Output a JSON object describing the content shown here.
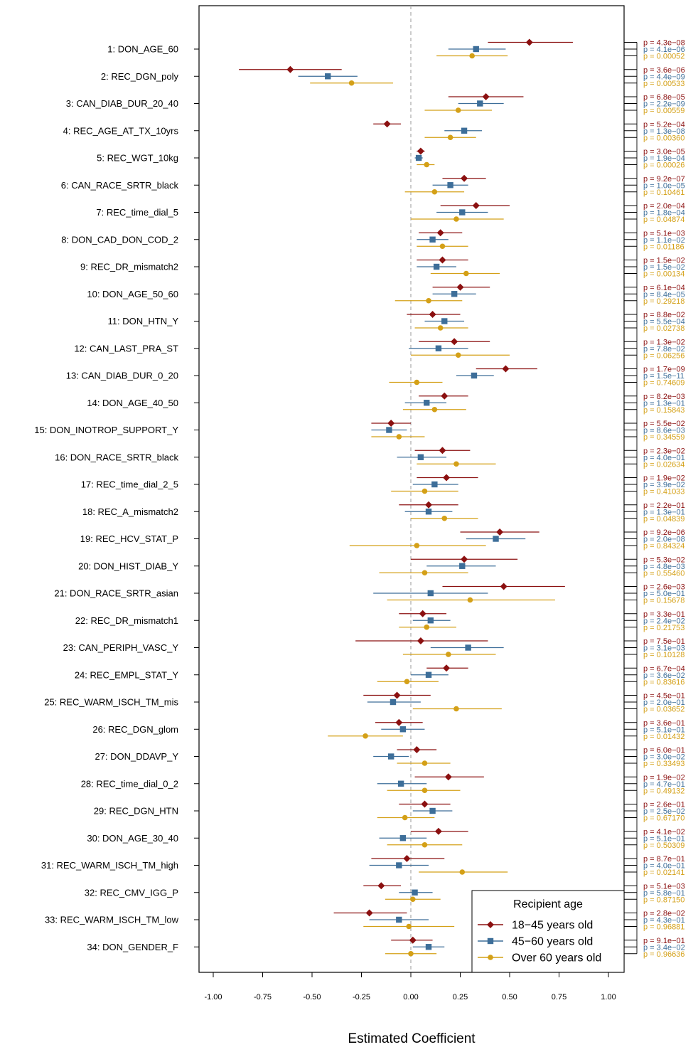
{
  "chart_data": {
    "type": "forest",
    "xlabel": "Estimated Coefficient",
    "xlim": [
      -1.0,
      1.0
    ],
    "xticks": [
      "-1.00",
      "-0.75",
      "-0.50",
      "-0.25",
      "0.00",
      "0.25",
      "0.50",
      "0.75",
      "1.00"
    ],
    "xtick_values": [
      -1.0,
      -0.75,
      -0.5,
      -0.25,
      0,
      0.25,
      0.5,
      0.75,
      1.0
    ],
    "reference_line": 0,
    "legend": {
      "title": "Recipient age",
      "placement": "bottom-right",
      "entries": [
        "18−45 years old",
        "45−60 years old",
        "Over 60 years old"
      ]
    },
    "series_styles": [
      {
        "color": "#8b1010",
        "marker": "diamond"
      },
      {
        "color": "#3d6e99",
        "marker": "square"
      },
      {
        "color": "#d4a017",
        "marker": "circle"
      }
    ],
    "categories": [
      "1:  DON_AGE_60",
      "2:  REC_DGN_poly",
      "3:  CAN_DIAB_DUR_20_40",
      "4:  REC_AGE_AT_TX_10yrs",
      "5:  REC_WGT_10kg",
      "6:  CAN_RACE_SRTR_black",
      "7:  REC_time_dial_5",
      "8:  DON_CAD_DON_COD_2",
      "9:  REC_DR_mismatch2",
      "10:  DON_AGE_50_60",
      "11:  DON_HTN_Y",
      "12:  CAN_LAST_PRA_ST",
      "13:  CAN_DIAB_DUR_0_20",
      "14:  DON_AGE_40_50",
      "15:  DON_INOTROP_SUPPORT_Y",
      "16:  DON_RACE_SRTR_black",
      "17:  REC_time_dial_2_5",
      "18:  REC_A_mismatch2",
      "19:  REC_HCV_STAT_P",
      "20:  DON_HIST_DIAB_Y",
      "21:  DON_RACE_SRTR_asian",
      "22:  REC_DR_mismatch1",
      "23:  CAN_PERIPH_VASC_Y",
      "24:  REC_EMPL_STAT_Y",
      "25:  REC_WARM_ISCH_TM_mis",
      "26:  REC_DGN_glom",
      "27:  DON_DDAVP_Y",
      "28:  REC_time_dial_0_2",
      "29:  REC_DGN_HTN",
      "30:  DON_AGE_30_40",
      "31:  REC_WARM_ISCH_TM_high",
      "32:  REC_CMV_IGG_P",
      "33:  REC_WARM_ISCH_TM_low",
      "34:  DON_GENDER_F"
    ],
    "series": [
      {
        "name": "18−45 years old",
        "estimates": [
          [
            0.6,
            0.39,
            0.82
          ],
          [
            -0.61,
            -0.87,
            -0.35
          ],
          [
            0.38,
            0.19,
            0.57
          ],
          [
            -0.12,
            -0.19,
            -0.05
          ],
          [
            0.05,
            0.03,
            0.07
          ],
          [
            0.27,
            0.16,
            0.38
          ],
          [
            0.33,
            0.15,
            0.5
          ],
          [
            0.15,
            0.04,
            0.26
          ],
          [
            0.16,
            0.03,
            0.29
          ],
          [
            0.25,
            0.11,
            0.4
          ],
          [
            0.11,
            -0.02,
            0.25
          ],
          [
            0.22,
            0.04,
            0.4
          ],
          [
            0.48,
            0.33,
            0.64
          ],
          [
            0.17,
            0.04,
            0.29
          ],
          [
            -0.1,
            -0.2,
            0.0
          ],
          [
            0.16,
            0.02,
            0.3
          ],
          [
            0.18,
            0.03,
            0.34
          ],
          [
            0.09,
            -0.06,
            0.24
          ],
          [
            0.45,
            0.25,
            0.65
          ],
          [
            0.27,
            0.0,
            0.54
          ],
          [
            0.47,
            0.16,
            0.78
          ],
          [
            0.06,
            -0.06,
            0.18
          ],
          [
            0.05,
            -0.28,
            0.39
          ],
          [
            0.18,
            0.08,
            0.29
          ],
          [
            -0.07,
            -0.24,
            0.1
          ],
          [
            -0.06,
            -0.18,
            0.06
          ],
          [
            0.03,
            -0.07,
            0.13
          ],
          [
            0.19,
            0.02,
            0.37
          ],
          [
            0.07,
            -0.06,
            0.2
          ],
          [
            0.14,
            0.0,
            0.29
          ],
          [
            -0.02,
            -0.2,
            0.17
          ],
          [
            -0.15,
            -0.24,
            -0.05
          ],
          [
            -0.21,
            -0.39,
            -0.02
          ],
          [
            0.01,
            -0.1,
            0.11
          ]
        ],
        "p_values": [
          "p = 4.3e−08",
          "p = 3.6e−06",
          "p = 6.8e−05",
          "p = 5.2e−04",
          "p = 3.0e−05",
          "p = 9.2e−07",
          "p = 2.0e−04",
          "p = 5.1e−03",
          "p = 1.5e−02",
          "p = 6.1e−04",
          "p = 8.8e−02",
          "p = 1.3e−02",
          "p = 1.7e−09",
          "p = 8.2e−03",
          "p = 5.5e−02",
          "p = 2.3e−02",
          "p = 1.9e−02",
          "p = 2.2e−01",
          "p = 9.2e−06",
          "p = 5.3e−02",
          "p = 2.6e−03",
          "p = 3.3e−01",
          "p = 7.5e−01",
          "p = 6.7e−04",
          "p = 4.5e−01",
          "p = 3.6e−01",
          "p = 6.0e−01",
          "p = 1.9e−02",
          "p = 2.6e−01",
          "p = 4.1e−02",
          "p = 8.7e−01",
          "p = 5.1e−03",
          "p = 2.8e−02",
          "p = 9.1e−01"
        ]
      },
      {
        "name": "45−60 years old",
        "estimates": [
          [
            0.33,
            0.19,
            0.48
          ],
          [
            -0.42,
            -0.57,
            -0.27
          ],
          [
            0.35,
            0.24,
            0.47
          ],
          [
            0.27,
            0.17,
            0.36
          ],
          [
            0.04,
            0.02,
            0.06
          ],
          [
            0.2,
            0.11,
            0.29
          ],
          [
            0.26,
            0.13,
            0.39
          ],
          [
            0.11,
            0.03,
            0.19
          ],
          [
            0.13,
            0.03,
            0.23
          ],
          [
            0.22,
            0.11,
            0.33
          ],
          [
            0.17,
            0.07,
            0.27
          ],
          [
            0.14,
            -0.01,
            0.29
          ],
          [
            0.32,
            0.23,
            0.42
          ],
          [
            0.08,
            -0.03,
            0.18
          ],
          [
            -0.11,
            -0.2,
            -0.02
          ],
          [
            0.05,
            -0.07,
            0.18
          ],
          [
            0.12,
            0.01,
            0.24
          ],
          [
            0.09,
            -0.03,
            0.21
          ],
          [
            0.43,
            0.28,
            0.58
          ],
          [
            0.26,
            0.08,
            0.43
          ],
          [
            0.1,
            -0.19,
            0.39
          ],
          [
            0.1,
            0.01,
            0.2
          ],
          [
            0.29,
            0.1,
            0.47
          ],
          [
            0.09,
            0.0,
            0.19
          ],
          [
            -0.09,
            -0.22,
            0.05
          ],
          [
            -0.04,
            -0.15,
            0.07
          ],
          [
            -0.1,
            -0.19,
            -0.01
          ],
          [
            -0.05,
            -0.17,
            0.08
          ],
          [
            0.11,
            0.01,
            0.21
          ],
          [
            -0.04,
            -0.16,
            0.08
          ],
          [
            -0.06,
            -0.21,
            0.09
          ],
          [
            0.02,
            -0.06,
            0.11
          ],
          [
            -0.06,
            -0.21,
            0.09
          ],
          [
            0.09,
            0.01,
            0.17
          ]
        ],
        "p_values": [
          "p = 4.1e−06",
          "p = 4.4e−09",
          "p = 2.2e−09",
          "p = 1.3e−08",
          "p = 1.9e−04",
          "p = 1.0e−05",
          "p = 1.8e−04",
          "p = 1.1e−02",
          "p = 1.5e−02",
          "p = 8.4e−05",
          "p = 5.5e−04",
          "p = 7.8e−02",
          "p = 1.5e−11",
          "p = 1.3e−01",
          "p = 8.6e−03",
          "p = 4.0e−01",
          "p = 3.9e−02",
          "p = 1.3e−01",
          "p = 2.0e−08",
          "p = 4.8e−03",
          "p = 5.0e−01",
          "p = 2.4e−02",
          "p = 3.1e−03",
          "p = 3.6e−02",
          "p = 2.0e−01",
          "p = 5.1e−01",
          "p = 3.0e−02",
          "p = 4.7e−01",
          "p = 2.5e−02",
          "p = 5.1e−01",
          "p = 4.0e−01",
          "p = 5.8e−01",
          "p = 4.3e−01",
          "p = 3.4e−02"
        ]
      },
      {
        "name": "Over 60 years old",
        "estimates": [
          [
            0.31,
            0.13,
            0.49
          ],
          [
            -0.3,
            -0.51,
            -0.09
          ],
          [
            0.24,
            0.07,
            0.41
          ],
          [
            0.2,
            0.07,
            0.33
          ],
          [
            0.08,
            0.03,
            0.12
          ],
          [
            0.12,
            -0.03,
            0.27
          ],
          [
            0.23,
            0.0,
            0.47
          ],
          [
            0.16,
            0.03,
            0.29
          ],
          [
            0.28,
            0.1,
            0.45
          ],
          [
            0.09,
            -0.08,
            0.26
          ],
          [
            0.15,
            0.02,
            0.29
          ],
          [
            0.24,
            0.0,
            0.5
          ],
          [
            0.03,
            -0.11,
            0.16
          ],
          [
            0.12,
            -0.04,
            0.28
          ],
          [
            -0.06,
            -0.2,
            0.07
          ],
          [
            0.23,
            0.03,
            0.43
          ],
          [
            0.07,
            -0.1,
            0.24
          ],
          [
            0.17,
            0.0,
            0.34
          ],
          [
            0.03,
            -0.31,
            0.38
          ],
          [
            0.07,
            -0.16,
            0.29
          ],
          [
            0.3,
            -0.12,
            0.73
          ],
          [
            0.08,
            -0.06,
            0.23
          ],
          [
            0.19,
            -0.04,
            0.43
          ],
          [
            -0.02,
            -0.17,
            0.14
          ],
          [
            0.23,
            0.01,
            0.46
          ],
          [
            -0.23,
            -0.42,
            -0.04
          ],
          [
            0.07,
            -0.07,
            0.2
          ],
          [
            0.07,
            -0.12,
            0.25
          ],
          [
            -0.03,
            -0.17,
            0.12
          ],
          [
            0.07,
            -0.12,
            0.26
          ],
          [
            0.26,
            0.04,
            0.49
          ],
          [
            0.01,
            -0.13,
            0.15
          ],
          [
            -0.01,
            -0.24,
            0.22
          ],
          [
            0.0,
            -0.13,
            0.13
          ]
        ],
        "p_values": [
          "p = 0.00052",
          "p = 0.00533",
          "p = 0.00559",
          "p = 0.00360",
          "p = 0.00026",
          "p = 0.10461",
          "p = 0.04874",
          "p = 0.01186",
          "p = 0.00134",
          "p = 0.29218",
          "p = 0.02738",
          "p = 0.06256",
          "p = 0.74609",
          "p = 0.15843",
          "p = 0.34559",
          "p = 0.02634",
          "p = 0.41033",
          "p = 0.04839",
          "p = 0.84324",
          "p = 0.55460",
          "p = 0.15678",
          "p = 0.21753",
          "p = 0.10128",
          "p = 0.83616",
          "p = 0.03652",
          "p = 0.01432",
          "p = 0.33493",
          "p = 0.49132",
          "p = 0.67170",
          "p = 0.50309",
          "p = 0.02141",
          "p = 0.87150",
          "p = 0.96881",
          "p = 0.96636"
        ]
      }
    ]
  }
}
